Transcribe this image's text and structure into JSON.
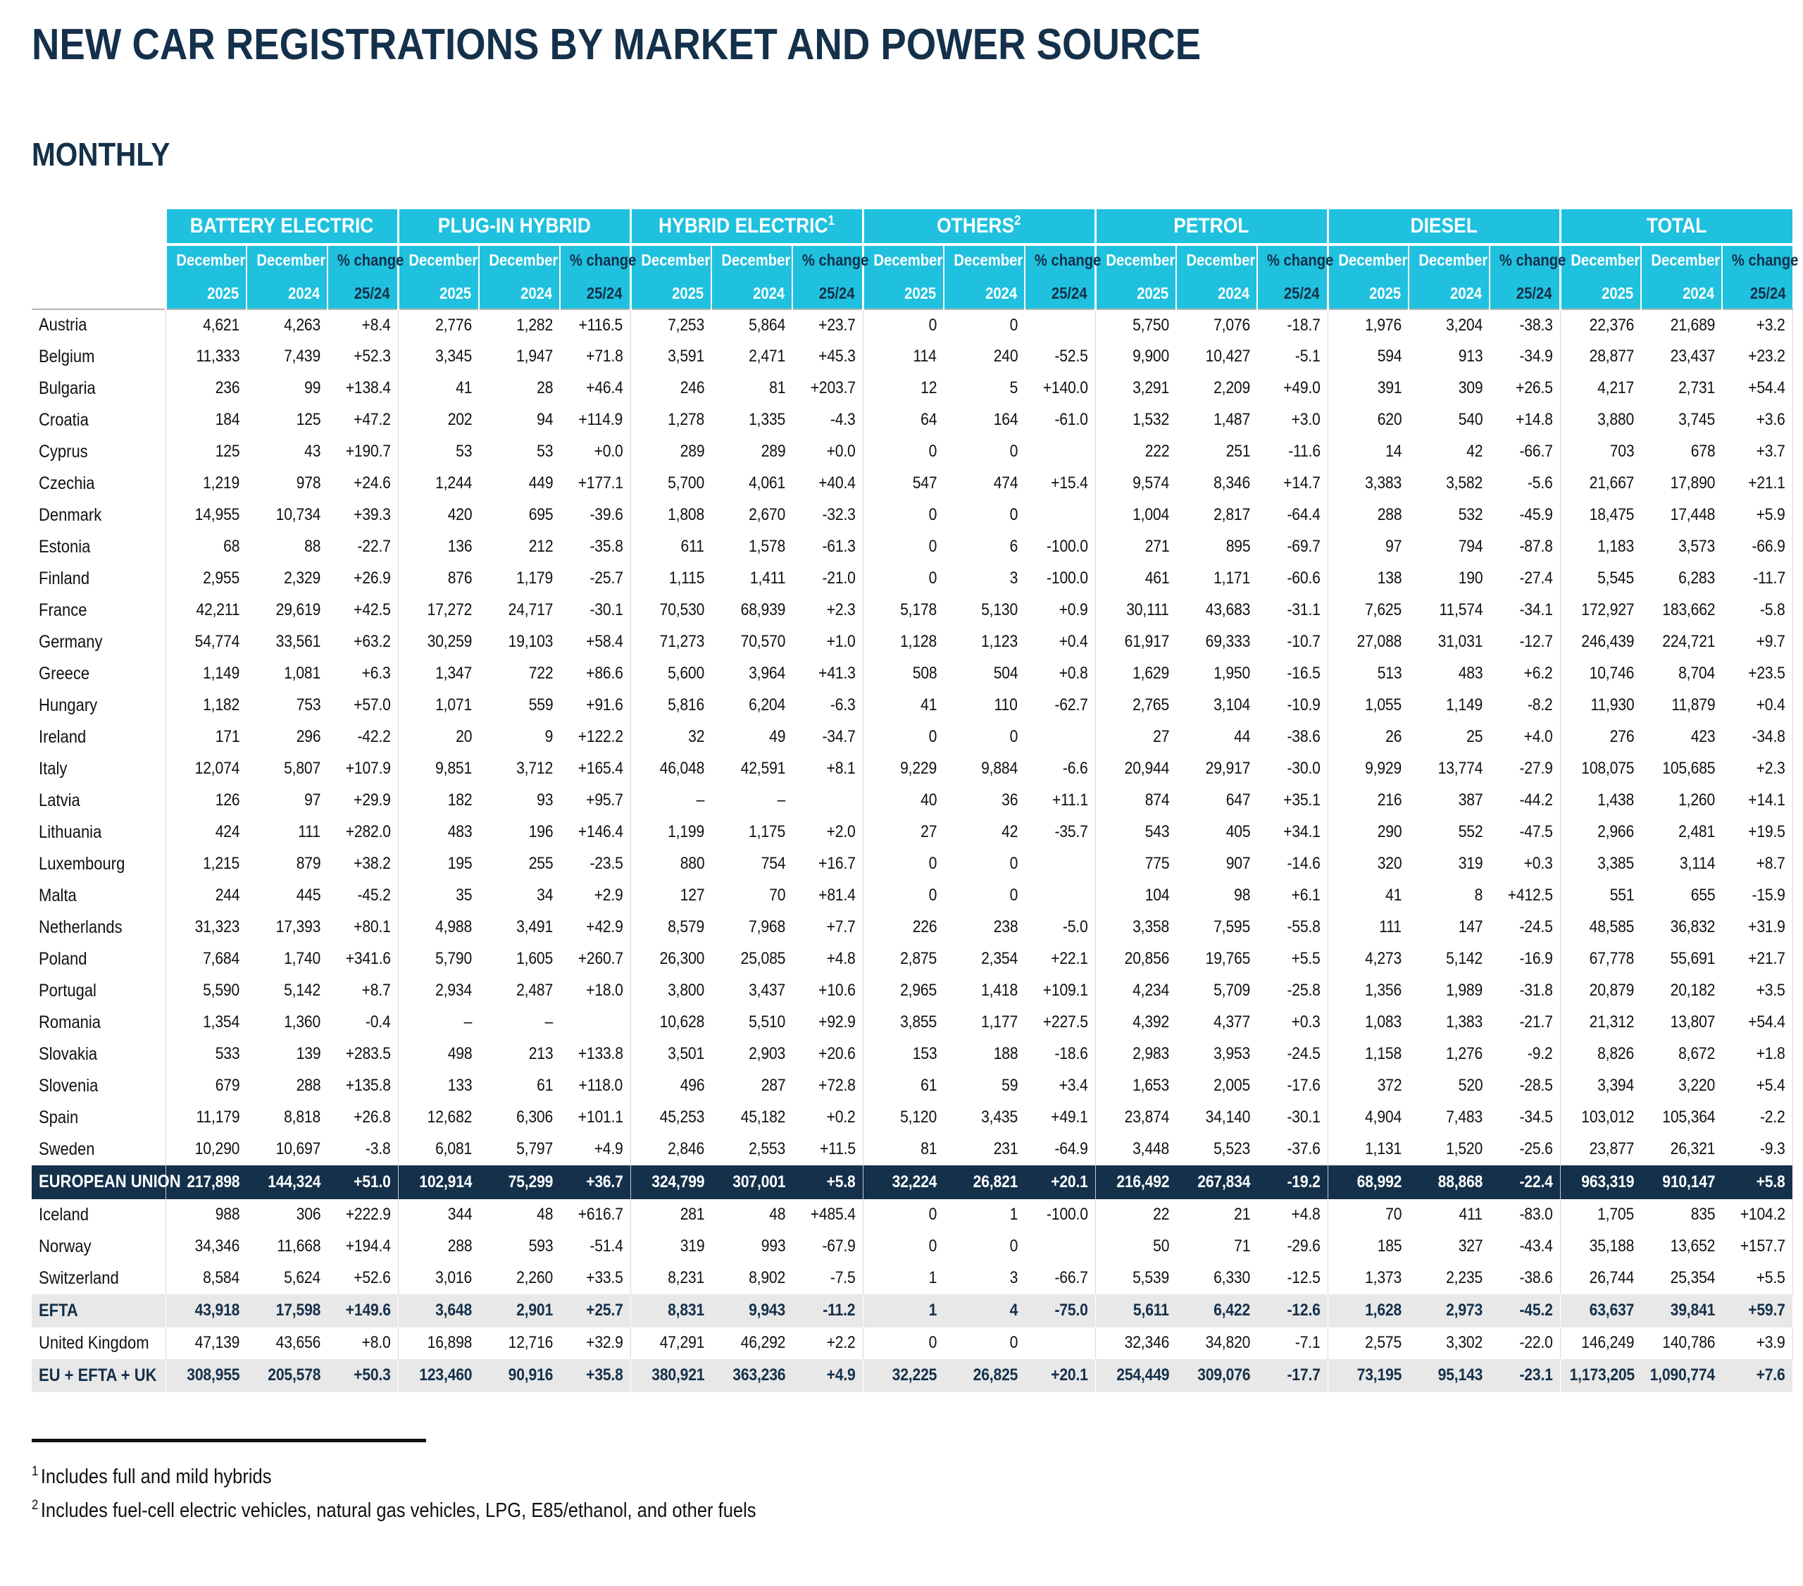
{
  "header": {
    "title": "NEW CAR REGISTRATIONS BY MARKET AND POWER SOURCE",
    "subtitle": "MONTHLY"
  },
  "colors": {
    "cyan": "#1fc1de",
    "navy": "#14304a",
    "summary_bg": "#e8e8e8",
    "grid_line": "#d9d9d9"
  },
  "table": {
    "groups": [
      {
        "label": "BATTERY ELECTRIC",
        "sup": ""
      },
      {
        "label": "PLUG-IN HYBRID",
        "sup": ""
      },
      {
        "label": "HYBRID ELECTRIC",
        "sup": "1"
      },
      {
        "label": "OTHERS",
        "sup": "2"
      },
      {
        "label": "PETROL",
        "sup": ""
      },
      {
        "label": "DIESEL",
        "sup": ""
      },
      {
        "label": "TOTAL",
        "sup": ""
      }
    ],
    "subheaders": {
      "col1_line1": "December",
      "col1_line2": "2025",
      "col2_line1": "December",
      "col2_line2": "2024",
      "col3_line1": "% change",
      "col3_line2": "25/24"
    },
    "rows": [
      {
        "label": "Austria",
        "type": "c",
        "v": [
          "4,621",
          "4,263",
          "+8.4",
          "2,776",
          "1,282",
          "+116.5",
          "7,253",
          "5,864",
          "+23.7",
          "0",
          "0",
          "",
          "5,750",
          "7,076",
          "-18.7",
          "1,976",
          "3,204",
          "-38.3",
          "22,376",
          "21,689",
          "+3.2"
        ]
      },
      {
        "label": "Belgium",
        "type": "c",
        "v": [
          "11,333",
          "7,439",
          "+52.3",
          "3,345",
          "1,947",
          "+71.8",
          "3,591",
          "2,471",
          "+45.3",
          "114",
          "240",
          "-52.5",
          "9,900",
          "10,427",
          "-5.1",
          "594",
          "913",
          "-34.9",
          "28,877",
          "23,437",
          "+23.2"
        ]
      },
      {
        "label": "Bulgaria",
        "type": "c",
        "v": [
          "236",
          "99",
          "+138.4",
          "41",
          "28",
          "+46.4",
          "246",
          "81",
          "+203.7",
          "12",
          "5",
          "+140.0",
          "3,291",
          "2,209",
          "+49.0",
          "391",
          "309",
          "+26.5",
          "4,217",
          "2,731",
          "+54.4"
        ]
      },
      {
        "label": "Croatia",
        "type": "c",
        "v": [
          "184",
          "125",
          "+47.2",
          "202",
          "94",
          "+114.9",
          "1,278",
          "1,335",
          "-4.3",
          "64",
          "164",
          "-61.0",
          "1,532",
          "1,487",
          "+3.0",
          "620",
          "540",
          "+14.8",
          "3,880",
          "3,745",
          "+3.6"
        ]
      },
      {
        "label": "Cyprus",
        "type": "c",
        "v": [
          "125",
          "43",
          "+190.7",
          "53",
          "53",
          "+0.0",
          "289",
          "289",
          "+0.0",
          "0",
          "0",
          "",
          "222",
          "251",
          "-11.6",
          "14",
          "42",
          "-66.7",
          "703",
          "678",
          "+3.7"
        ]
      },
      {
        "label": "Czechia",
        "type": "c",
        "v": [
          "1,219",
          "978",
          "+24.6",
          "1,244",
          "449",
          "+177.1",
          "5,700",
          "4,061",
          "+40.4",
          "547",
          "474",
          "+15.4",
          "9,574",
          "8,346",
          "+14.7",
          "3,383",
          "3,582",
          "-5.6",
          "21,667",
          "17,890",
          "+21.1"
        ]
      },
      {
        "label": "Denmark",
        "type": "c",
        "v": [
          "14,955",
          "10,734",
          "+39.3",
          "420",
          "695",
          "-39.6",
          "1,808",
          "2,670",
          "-32.3",
          "0",
          "0",
          "",
          "1,004",
          "2,817",
          "-64.4",
          "288",
          "532",
          "-45.9",
          "18,475",
          "17,448",
          "+5.9"
        ]
      },
      {
        "label": "Estonia",
        "type": "c",
        "v": [
          "68",
          "88",
          "-22.7",
          "136",
          "212",
          "-35.8",
          "611",
          "1,578",
          "-61.3",
          "0",
          "6",
          "-100.0",
          "271",
          "895",
          "-69.7",
          "97",
          "794",
          "-87.8",
          "1,183",
          "3,573",
          "-66.9"
        ]
      },
      {
        "label": "Finland",
        "type": "c",
        "v": [
          "2,955",
          "2,329",
          "+26.9",
          "876",
          "1,179",
          "-25.7",
          "1,115",
          "1,411",
          "-21.0",
          "0",
          "3",
          "-100.0",
          "461",
          "1,171",
          "-60.6",
          "138",
          "190",
          "-27.4",
          "5,545",
          "6,283",
          "-11.7"
        ]
      },
      {
        "label": "France",
        "type": "c",
        "v": [
          "42,211",
          "29,619",
          "+42.5",
          "17,272",
          "24,717",
          "-30.1",
          "70,530",
          "68,939",
          "+2.3",
          "5,178",
          "5,130",
          "+0.9",
          "30,111",
          "43,683",
          "-31.1",
          "7,625",
          "11,574",
          "-34.1",
          "172,927",
          "183,662",
          "-5.8"
        ]
      },
      {
        "label": "Germany",
        "type": "c",
        "v": [
          "54,774",
          "33,561",
          "+63.2",
          "30,259",
          "19,103",
          "+58.4",
          "71,273",
          "70,570",
          "+1.0",
          "1,128",
          "1,123",
          "+0.4",
          "61,917",
          "69,333",
          "-10.7",
          "27,088",
          "31,031",
          "-12.7",
          "246,439",
          "224,721",
          "+9.7"
        ]
      },
      {
        "label": "Greece",
        "type": "c",
        "v": [
          "1,149",
          "1,081",
          "+6.3",
          "1,347",
          "722",
          "+86.6",
          "5,600",
          "3,964",
          "+41.3",
          "508",
          "504",
          "+0.8",
          "1,629",
          "1,950",
          "-16.5",
          "513",
          "483",
          "+6.2",
          "10,746",
          "8,704",
          "+23.5"
        ]
      },
      {
        "label": "Hungary",
        "type": "c",
        "v": [
          "1,182",
          "753",
          "+57.0",
          "1,071",
          "559",
          "+91.6",
          "5,816",
          "6,204",
          "-6.3",
          "41",
          "110",
          "-62.7",
          "2,765",
          "3,104",
          "-10.9",
          "1,055",
          "1,149",
          "-8.2",
          "11,930",
          "11,879",
          "+0.4"
        ]
      },
      {
        "label": "Ireland",
        "type": "c",
        "v": [
          "171",
          "296",
          "-42.2",
          "20",
          "9",
          "+122.2",
          "32",
          "49",
          "-34.7",
          "0",
          "0",
          "",
          "27",
          "44",
          "-38.6",
          "26",
          "25",
          "+4.0",
          "276",
          "423",
          "-34.8"
        ]
      },
      {
        "label": "Italy",
        "type": "c",
        "v": [
          "12,074",
          "5,807",
          "+107.9",
          "9,851",
          "3,712",
          "+165.4",
          "46,048",
          "42,591",
          "+8.1",
          "9,229",
          "9,884",
          "-6.6",
          "20,944",
          "29,917",
          "-30.0",
          "9,929",
          "13,774",
          "-27.9",
          "108,075",
          "105,685",
          "+2.3"
        ]
      },
      {
        "label": "Latvia",
        "type": "c",
        "v": [
          "126",
          "97",
          "+29.9",
          "182",
          "93",
          "+95.7",
          "–",
          "–",
          "",
          "40",
          "36",
          "+11.1",
          "874",
          "647",
          "+35.1",
          "216",
          "387",
          "-44.2",
          "1,438",
          "1,260",
          "+14.1"
        ]
      },
      {
        "label": "Lithuania",
        "type": "c",
        "v": [
          "424",
          "111",
          "+282.0",
          "483",
          "196",
          "+146.4",
          "1,199",
          "1,175",
          "+2.0",
          "27",
          "42",
          "-35.7",
          "543",
          "405",
          "+34.1",
          "290",
          "552",
          "-47.5",
          "2,966",
          "2,481",
          "+19.5"
        ]
      },
      {
        "label": "Luxembourg",
        "type": "c",
        "v": [
          "1,215",
          "879",
          "+38.2",
          "195",
          "255",
          "-23.5",
          "880",
          "754",
          "+16.7",
          "0",
          "0",
          "",
          "775",
          "907",
          "-14.6",
          "320",
          "319",
          "+0.3",
          "3,385",
          "3,114",
          "+8.7"
        ]
      },
      {
        "label": "Malta",
        "type": "c",
        "v": [
          "244",
          "445",
          "-45.2",
          "35",
          "34",
          "+2.9",
          "127",
          "70",
          "+81.4",
          "0",
          "0",
          "",
          "104",
          "98",
          "+6.1",
          "41",
          "8",
          "+412.5",
          "551",
          "655",
          "-15.9"
        ]
      },
      {
        "label": "Netherlands",
        "type": "c",
        "v": [
          "31,323",
          "17,393",
          "+80.1",
          "4,988",
          "3,491",
          "+42.9",
          "8,579",
          "7,968",
          "+7.7",
          "226",
          "238",
          "-5.0",
          "3,358",
          "7,595",
          "-55.8",
          "111",
          "147",
          "-24.5",
          "48,585",
          "36,832",
          "+31.9"
        ]
      },
      {
        "label": "Poland",
        "type": "c",
        "v": [
          "7,684",
          "1,740",
          "+341.6",
          "5,790",
          "1,605",
          "+260.7",
          "26,300",
          "25,085",
          "+4.8",
          "2,875",
          "2,354",
          "+22.1",
          "20,856",
          "19,765",
          "+5.5",
          "4,273",
          "5,142",
          "-16.9",
          "67,778",
          "55,691",
          "+21.7"
        ]
      },
      {
        "label": "Portugal",
        "type": "c",
        "v": [
          "5,590",
          "5,142",
          "+8.7",
          "2,934",
          "2,487",
          "+18.0",
          "3,800",
          "3,437",
          "+10.6",
          "2,965",
          "1,418",
          "+109.1",
          "4,234",
          "5,709",
          "-25.8",
          "1,356",
          "1,989",
          "-31.8",
          "20,879",
          "20,182",
          "+3.5"
        ]
      },
      {
        "label": "Romania",
        "type": "c",
        "v": [
          "1,354",
          "1,360",
          "-0.4",
          "–",
          "–",
          "",
          "10,628",
          "5,510",
          "+92.9",
          "3,855",
          "1,177",
          "+227.5",
          "4,392",
          "4,377",
          "+0.3",
          "1,083",
          "1,383",
          "-21.7",
          "21,312",
          "13,807",
          "+54.4"
        ]
      },
      {
        "label": "Slovakia",
        "type": "c",
        "v": [
          "533",
          "139",
          "+283.5",
          "498",
          "213",
          "+133.8",
          "3,501",
          "2,903",
          "+20.6",
          "153",
          "188",
          "-18.6",
          "2,983",
          "3,953",
          "-24.5",
          "1,158",
          "1,276",
          "-9.2",
          "8,826",
          "8,672",
          "+1.8"
        ]
      },
      {
        "label": "Slovenia",
        "type": "c",
        "v": [
          "679",
          "288",
          "+135.8",
          "133",
          "61",
          "+118.0",
          "496",
          "287",
          "+72.8",
          "61",
          "59",
          "+3.4",
          "1,653",
          "2,005",
          "-17.6",
          "372",
          "520",
          "-28.5",
          "3,394",
          "3,220",
          "+5.4"
        ]
      },
      {
        "label": "Spain",
        "type": "c",
        "v": [
          "11,179",
          "8,818",
          "+26.8",
          "12,682",
          "6,306",
          "+101.1",
          "45,253",
          "45,182",
          "+0.2",
          "5,120",
          "3,435",
          "+49.1",
          "23,874",
          "34,140",
          "-30.1",
          "4,904",
          "7,483",
          "-34.5",
          "103,012",
          "105,364",
          "-2.2"
        ]
      },
      {
        "label": "Sweden",
        "type": "c",
        "v": [
          "10,290",
          "10,697",
          "-3.8",
          "6,081",
          "5,797",
          "+4.9",
          "2,846",
          "2,553",
          "+11.5",
          "81",
          "231",
          "-64.9",
          "3,448",
          "5,523",
          "-37.6",
          "1,131",
          "1,520",
          "-25.6",
          "23,877",
          "26,321",
          "-9.3"
        ]
      },
      {
        "label": "EUROPEAN UNION",
        "type": "eu",
        "v": [
          "217,898",
          "144,324",
          "+51.0",
          "102,914",
          "75,299",
          "+36.7",
          "324,799",
          "307,001",
          "+5.8",
          "32,224",
          "26,821",
          "+20.1",
          "216,492",
          "267,834",
          "-19.2",
          "68,992",
          "88,868",
          "-22.4",
          "963,319",
          "910,147",
          "+5.8"
        ]
      },
      {
        "label": "Iceland",
        "type": "c",
        "v": [
          "988",
          "306",
          "+222.9",
          "344",
          "48",
          "+616.7",
          "281",
          "48",
          "+485.4",
          "0",
          "1",
          "-100.0",
          "22",
          "21",
          "+4.8",
          "70",
          "411",
          "-83.0",
          "1,705",
          "835",
          "+104.2"
        ]
      },
      {
        "label": "Norway",
        "type": "c",
        "v": [
          "34,346",
          "11,668",
          "+194.4",
          "288",
          "593",
          "-51.4",
          "319",
          "993",
          "-67.9",
          "0",
          "0",
          "",
          "50",
          "71",
          "-29.6",
          "185",
          "327",
          "-43.4",
          "35,188",
          "13,652",
          "+157.7"
        ]
      },
      {
        "label": "Switzerland",
        "type": "c",
        "v": [
          "8,584",
          "5,624",
          "+52.6",
          "3,016",
          "2,260",
          "+33.5",
          "8,231",
          "8,902",
          "-7.5",
          "1",
          "3",
          "-66.7",
          "5,539",
          "6,330",
          "-12.5",
          "1,373",
          "2,235",
          "-38.6",
          "26,744",
          "25,354",
          "+5.5"
        ]
      },
      {
        "label": "EFTA",
        "type": "s",
        "v": [
          "43,918",
          "17,598",
          "+149.6",
          "3,648",
          "2,901",
          "+25.7",
          "8,831",
          "9,943",
          "-11.2",
          "1",
          "4",
          "-75.0",
          "5,611",
          "6,422",
          "-12.6",
          "1,628",
          "2,973",
          "-45.2",
          "63,637",
          "39,841",
          "+59.7"
        ]
      },
      {
        "label": "United Kingdom",
        "type": "c",
        "v": [
          "47,139",
          "43,656",
          "+8.0",
          "16,898",
          "12,716",
          "+32.9",
          "47,291",
          "46,292",
          "+2.2",
          "0",
          "0",
          "",
          "32,346",
          "34,820",
          "-7.1",
          "2,575",
          "3,302",
          "-22.0",
          "146,249",
          "140,786",
          "+3.9"
        ]
      },
      {
        "label": "EU + EFTA + UK",
        "type": "s",
        "v": [
          "308,955",
          "205,578",
          "+50.3",
          "123,460",
          "90,916",
          "+35.8",
          "380,921",
          "363,236",
          "+4.9",
          "32,225",
          "26,825",
          "+20.1",
          "254,449",
          "309,076",
          "-17.7",
          "73,195",
          "95,143",
          "-23.1",
          "1,173,205",
          "1,090,774",
          "+7.6"
        ]
      }
    ]
  },
  "footnotes": [
    {
      "sup": "1",
      "text": "Includes full and mild hybrids"
    },
    {
      "sup": "2",
      "text": "Includes fuel-cell electric vehicles, natural gas vehicles, LPG, E85/ethanol, and other fuels"
    }
  ]
}
